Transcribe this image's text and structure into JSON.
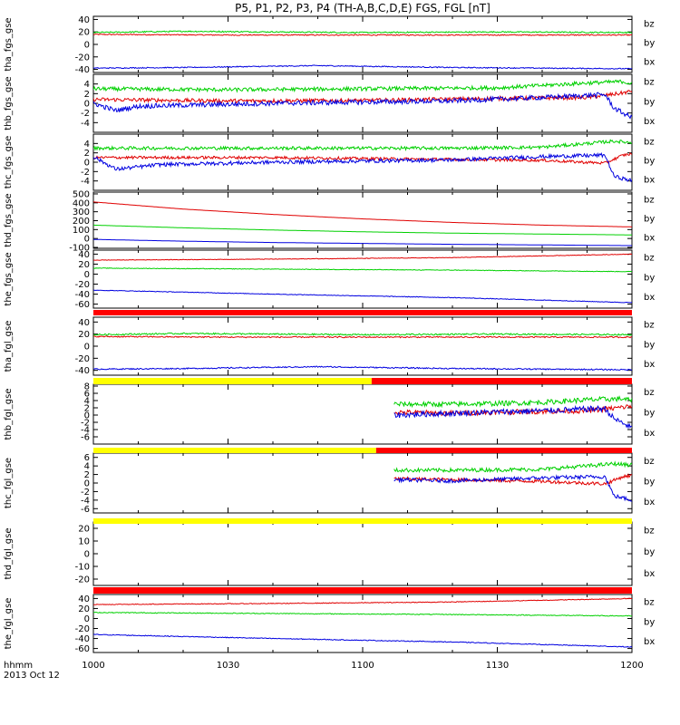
{
  "title": "P5, P1, P2, P3, P4 (TH-A,B,C,D,E) FGS, FGL [nT]",
  "time_axis": {
    "label_top": "hhmm",
    "label_bottom": "2013 Oct 12",
    "ticks": [
      "1000",
      "1030",
      "1100",
      "1130",
      "1200"
    ],
    "range_minutes": [
      0,
      120
    ]
  },
  "components": {
    "names": [
      "bz",
      "by",
      "bx"
    ],
    "colors": {
      "bz": "#e00000",
      "by": "#00d000",
      "bx": "#0000e0"
    }
  },
  "status_bar_colors": {
    "red": "#ff0000",
    "yellow": "#ffff00",
    "black": "#000000"
  },
  "chart_data": [
    {
      "type": "line",
      "name": "tha_fgs_gse",
      "ylabel": "tha_fgs_gse",
      "ylim": [
        -45,
        45
      ],
      "yticks": [
        40,
        20,
        0,
        -20,
        -40
      ],
      "x_range": [
        0,
        120
      ],
      "series": [
        {
          "name": "bz",
          "points": [
            [
              0,
              16
            ],
            [
              30,
              15
            ],
            [
              60,
              15
            ],
            [
              90,
              15
            ],
            [
              120,
              15
            ]
          ],
          "noise": 0.8
        },
        {
          "name": "by",
          "points": [
            [
              0,
              19
            ],
            [
              20,
              21
            ],
            [
              60,
              19
            ],
            [
              90,
              20
            ],
            [
              120,
              19
            ]
          ],
          "noise": 1.0
        },
        {
          "name": "bx",
          "points": [
            [
              0,
              -38
            ],
            [
              20,
              -37
            ],
            [
              50,
              -34
            ],
            [
              80,
              -37
            ],
            [
              120,
              -39
            ]
          ],
          "noise": 0.8
        }
      ]
    },
    {
      "type": "line",
      "name": "thb_fgs_gse",
      "ylabel": "thb_fgs_gse",
      "ylim": [
        -6,
        6
      ],
      "yticks": [
        4,
        2,
        0,
        -2,
        -4
      ],
      "x_range": [
        0,
        120
      ],
      "series": [
        {
          "name": "bz",
          "points": [
            [
              0,
              0.8
            ],
            [
              30,
              0.5
            ],
            [
              60,
              0.6
            ],
            [
              90,
              1.0
            ],
            [
              110,
              1.2
            ],
            [
              117,
              2
            ],
            [
              120,
              2.5
            ]
          ],
          "noise": 0.4
        },
        {
          "name": "by",
          "points": [
            [
              0,
              3
            ],
            [
              30,
              2.8
            ],
            [
              60,
              3
            ],
            [
              90,
              3.2
            ],
            [
              110,
              4.2
            ],
            [
              118,
              4.5
            ],
            [
              120,
              4
            ]
          ],
          "noise": 0.4
        },
        {
          "name": "bx",
          "points": [
            [
              0,
              0
            ],
            [
              5,
              -1.5
            ],
            [
              10,
              -0.6
            ],
            [
              40,
              0
            ],
            [
              80,
              0.5
            ],
            [
              100,
              1.2
            ],
            [
              114,
              1.8
            ],
            [
              116,
              -1
            ],
            [
              120,
              -3
            ]
          ],
          "noise": 0.5
        }
      ]
    },
    {
      "type": "line",
      "name": "thc_fgs_gse",
      "ylabel": "thc_fgs_gse",
      "ylim": [
        -6,
        6
      ],
      "yticks": [
        4,
        2,
        0,
        -2,
        -4
      ],
      "x_range": [
        0,
        120
      ],
      "series": [
        {
          "name": "bz",
          "points": [
            [
              0,
              1
            ],
            [
              40,
              1
            ],
            [
              80,
              0.6
            ],
            [
              100,
              0.4
            ],
            [
              114,
              -0.2
            ],
            [
              118,
              1.5
            ],
            [
              120,
              1.8
            ]
          ],
          "noise": 0.3
        },
        {
          "name": "by",
          "points": [
            [
              0,
              3
            ],
            [
              40,
              3
            ],
            [
              80,
              3
            ],
            [
              100,
              3.2
            ],
            [
              110,
              4
            ],
            [
              116,
              4.5
            ],
            [
              120,
              4.2
            ]
          ],
          "noise": 0.35
        },
        {
          "name": "bx",
          "points": [
            [
              0,
              1.2
            ],
            [
              5,
              -1.5
            ],
            [
              15,
              -0.5
            ],
            [
              40,
              0
            ],
            [
              80,
              0.5
            ],
            [
              100,
              1.2
            ],
            [
              114,
              1.5
            ],
            [
              116,
              -3
            ],
            [
              120,
              -4
            ]
          ],
          "noise": 0.4
        }
      ]
    },
    {
      "type": "line",
      "name": "thd_fgs_gse",
      "ylabel": "thd_fgs_gse",
      "ylim": [
        -110,
        520
      ],
      "yticks": [
        500,
        400,
        300,
        200,
        100,
        0,
        -100
      ],
      "x_range": [
        0,
        120
      ],
      "series": [
        {
          "name": "bz",
          "points": [
            [
              0,
              410
            ],
            [
              20,
              330
            ],
            [
              40,
              270
            ],
            [
              60,
              220
            ],
            [
              80,
              180
            ],
            [
              100,
              150
            ],
            [
              120,
              130
            ]
          ],
          "noise": 0
        },
        {
          "name": "by",
          "points": [
            [
              0,
              150
            ],
            [
              20,
              120
            ],
            [
              40,
              95
            ],
            [
              60,
              75
            ],
            [
              80,
              60
            ],
            [
              100,
              50
            ],
            [
              120,
              40
            ]
          ],
          "noise": 0
        },
        {
          "name": "bx",
          "points": [
            [
              0,
              -10
            ],
            [
              20,
              -30
            ],
            [
              40,
              -45
            ],
            [
              60,
              -55
            ],
            [
              80,
              -65
            ],
            [
              100,
              -72
            ],
            [
              120,
              -80
            ]
          ],
          "noise": 0
        }
      ]
    },
    {
      "type": "line",
      "name": "the_fgs_gse",
      "ylabel": "the_fgs_gse",
      "ylim": [
        -68,
        48
      ],
      "yticks": [
        40,
        20,
        0,
        -20,
        -40,
        -60
      ],
      "x_range": [
        0,
        120
      ],
      "series": [
        {
          "name": "bz",
          "points": [
            [
              0,
              28
            ],
            [
              40,
              30
            ],
            [
              80,
              33
            ],
            [
              120,
              40
            ]
          ],
          "noise": 0.5
        },
        {
          "name": "by",
          "points": [
            [
              0,
              12
            ],
            [
              40,
              10
            ],
            [
              80,
              8
            ],
            [
              120,
              5
            ]
          ],
          "noise": 0.6
        },
        {
          "name": "bx",
          "points": [
            [
              0,
              -32
            ],
            [
              40,
              -40
            ],
            [
              80,
              -47
            ],
            [
              120,
              -57
            ]
          ],
          "noise": 0.6
        }
      ]
    },
    {
      "type": "line",
      "name": "tha_fgl_gse",
      "ylabel": "tha_fgl_gse",
      "ylim": [
        -48,
        48
      ],
      "yticks": [
        40,
        20,
        0,
        -20,
        -40
      ],
      "x_range": [
        0,
        120
      ],
      "series": [
        {
          "name": "bz",
          "points": [
            [
              0,
              16
            ],
            [
              30,
              15
            ],
            [
              60,
              15
            ],
            [
              90,
              15
            ],
            [
              120,
              15
            ]
          ],
          "noise": 1.0
        },
        {
          "name": "by",
          "points": [
            [
              0,
              19
            ],
            [
              20,
              21
            ],
            [
              60,
              19
            ],
            [
              90,
              20
            ],
            [
              120,
              19
            ]
          ],
          "noise": 1.2
        },
        {
          "name": "bx",
          "points": [
            [
              0,
              -38
            ],
            [
              20,
              -37
            ],
            [
              50,
              -34
            ],
            [
              80,
              -37
            ],
            [
              120,
              -39
            ]
          ],
          "noise": 1.0
        }
      ]
    },
    {
      "type": "line",
      "name": "thb_fgl_gse",
      "ylabel": "thb_fgl_gse",
      "ylim": [
        -8,
        8.5
      ],
      "yticks": [
        8,
        6,
        4,
        2,
        0,
        -2,
        -4,
        -6
      ],
      "x_range": [
        0,
        120
      ],
      "series": [
        {
          "name": "bz",
          "points": [
            [
              67,
              0.8
            ],
            [
              80,
              0.5
            ],
            [
              90,
              0.8
            ],
            [
              100,
              1.0
            ],
            [
              110,
              1.2
            ],
            [
              117,
              2
            ],
            [
              120,
              2.5
            ]
          ],
          "noise": 0.7
        },
        {
          "name": "by",
          "points": [
            [
              67,
              3
            ],
            [
              80,
              3
            ],
            [
              90,
              3.2
            ],
            [
              100,
              3.5
            ],
            [
              110,
              4.2
            ],
            [
              118,
              4.5
            ],
            [
              120,
              4
            ]
          ],
          "noise": 0.7
        },
        {
          "name": "bx",
          "points": [
            [
              67,
              0
            ],
            [
              80,
              0.5
            ],
            [
              100,
              1.2
            ],
            [
              114,
              1.8
            ],
            [
              116,
              -1
            ],
            [
              120,
              -3.5
            ]
          ],
          "noise": 0.8
        }
      ]
    },
    {
      "type": "line",
      "name": "thc_fgl_gse",
      "ylabel": "thc_fgl_gse",
      "ylim": [
        -7,
        7
      ],
      "yticks": [
        6,
        4,
        2,
        0,
        -2,
        -4,
        -6
      ],
      "x_range": [
        0,
        120
      ],
      "series": [
        {
          "name": "bz",
          "points": [
            [
              67,
              1
            ],
            [
              80,
              0.8
            ],
            [
              100,
              0.4
            ],
            [
              114,
              -0.2
            ],
            [
              118,
              1.5
            ],
            [
              120,
              1.8
            ]
          ],
          "noise": 0.4
        },
        {
          "name": "by",
          "points": [
            [
              67,
              3
            ],
            [
              80,
              3
            ],
            [
              100,
              3.2
            ],
            [
              110,
              4
            ],
            [
              116,
              4.5
            ],
            [
              120,
              4.2
            ]
          ],
          "noise": 0.45
        },
        {
          "name": "bx",
          "points": [
            [
              67,
              0.8
            ],
            [
              80,
              0.5
            ],
            [
              100,
              1.2
            ],
            [
              114,
              1.5
            ],
            [
              116,
              -3
            ],
            [
              120,
              -4
            ]
          ],
          "noise": 0.45
        }
      ]
    },
    {
      "type": "line",
      "name": "thd_fgl_gse",
      "ylabel": "thd_fgl_gse",
      "ylim": [
        -25,
        25
      ],
      "yticks": [
        20,
        10,
        0,
        -10,
        -20
      ],
      "x_range": [
        0,
        120
      ],
      "series": []
    },
    {
      "type": "line",
      "name": "the_fgl_gse",
      "ylabel": "the_fgl_gse",
      "ylim": [
        -68,
        48
      ],
      "yticks": [
        40,
        20,
        0,
        -20,
        -40,
        -60
      ],
      "x_range": [
        0,
        120
      ],
      "series": [
        {
          "name": "bz",
          "points": [
            [
              0,
              28
            ],
            [
              40,
              30
            ],
            [
              80,
              33
            ],
            [
              120,
              40
            ]
          ],
          "noise": 0.7
        },
        {
          "name": "by",
          "points": [
            [
              0,
              12
            ],
            [
              40,
              10
            ],
            [
              80,
              8
            ],
            [
              120,
              5
            ]
          ],
          "noise": 0.8
        },
        {
          "name": "bx",
          "points": [
            [
              0,
              -32
            ],
            [
              40,
              -40
            ],
            [
              80,
              -47
            ],
            [
              120,
              -57
            ]
          ],
          "noise": 0.8
        }
      ]
    }
  ],
  "status_bars": [
    {
      "after_panel": 4,
      "segments": [
        {
          "from": 0,
          "to": 120,
          "color": "red"
        }
      ]
    },
    {
      "after_panel": 5,
      "segments": [
        {
          "from": 0,
          "to": 62,
          "color": "yellow"
        },
        {
          "from": 62,
          "to": 120,
          "color": "red"
        }
      ]
    },
    {
      "after_panel": 6,
      "segments": [
        {
          "from": 0,
          "to": 63,
          "color": "yellow"
        },
        {
          "from": 63,
          "to": 120,
          "color": "red"
        }
      ]
    },
    {
      "after_panel": 7,
      "segments": [
        {
          "from": 0,
          "to": 120,
          "color": "yellow"
        }
      ]
    },
    {
      "after_panel": 8,
      "segments": [
        {
          "from": 0,
          "to": 120,
          "color": "red"
        }
      ]
    }
  ]
}
